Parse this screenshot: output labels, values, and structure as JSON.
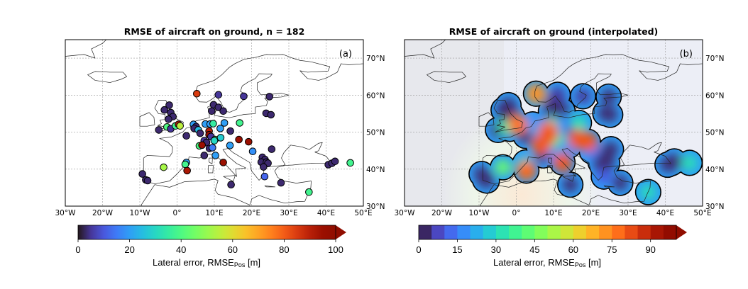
{
  "chart_data": [
    {
      "type": "scatter",
      "title": "RMSE of aircraft on ground, n = 182",
      "panel_label": "(a)",
      "x_ticks": [
        "30°W",
        "20°W",
        "10°W",
        "0°",
        "10°E",
        "20°E",
        "30°E",
        "40°E",
        "50°E"
      ],
      "y_ticks": [
        "30°N",
        "40°N",
        "50°N",
        "60°N",
        "70°N"
      ],
      "xlim": [
        -30,
        50
      ],
      "ylim": [
        30,
        75
      ],
      "grid": true,
      "colorbar": {
        "label": "Lateral error, RMSE",
        "label_sub": "Pos",
        "label_unit": " [m]",
        "ticks": [
          "0",
          "20",
          "40",
          "60",
          "80",
          "100"
        ],
        "range": [
          0,
          100
        ],
        "extend": "max",
        "colormap": "turbo"
      },
      "points": [
        [
          5.3,
          60.4,
          85
        ],
        [
          11.1,
          60.1,
          5
        ],
        [
          17.9,
          59.7,
          5
        ],
        [
          24.8,
          59.6,
          3
        ],
        [
          23.9,
          55.1,
          3
        ],
        [
          25.2,
          54.7,
          3
        ],
        [
          -2.1,
          57.3,
          3
        ],
        [
          -3.4,
          56.0,
          3
        ],
        [
          -1.7,
          55.3,
          3
        ],
        [
          -1.1,
          54.2,
          3
        ],
        [
          -2.3,
          53.5,
          3
        ],
        [
          9.8,
          57.4,
          3
        ],
        [
          9.3,
          55.7,
          3
        ],
        [
          11.1,
          56.7,
          3
        ],
        [
          12.4,
          55.7,
          3
        ],
        [
          -4.9,
          50.6,
          3
        ],
        [
          -2.7,
          51.4,
          40
        ],
        [
          -1.7,
          50.9,
          5
        ],
        [
          -0.4,
          51.7,
          38
        ],
        [
          0.4,
          52.1,
          90
        ],
        [
          0.8,
          51.7,
          55
        ],
        [
          2.5,
          49.0,
          3
        ],
        [
          4.4,
          52.1,
          20
        ],
        [
          5.1,
          51.5,
          3
        ],
        [
          4.6,
          51.0,
          3
        ],
        [
          5.7,
          50.6,
          25
        ],
        [
          6.2,
          49.7,
          3
        ],
        [
          7.6,
          52.2,
          20
        ],
        [
          8.9,
          52.2,
          20
        ],
        [
          9.7,
          52.3,
          35
        ],
        [
          8.6,
          50.3,
          90
        ],
        [
          8.6,
          49.3,
          95
        ],
        [
          9.1,
          48.8,
          5
        ],
        [
          10.2,
          48.0,
          45
        ],
        [
          10.0,
          47.7,
          30
        ],
        [
          11.7,
          48.5,
          28
        ],
        [
          11.6,
          51.0,
          20
        ],
        [
          12.7,
          52.5,
          20
        ],
        [
          14.3,
          50.3,
          3
        ],
        [
          16.8,
          52.5,
          38
        ],
        [
          7.3,
          47.7,
          5
        ],
        [
          7.9,
          47.2,
          3
        ],
        [
          6.0,
          46.3,
          40
        ],
        [
          6.7,
          46.5,
          95
        ],
        [
          8.7,
          45.6,
          3
        ],
        [
          9.5,
          45.8,
          15
        ],
        [
          7.3,
          43.7,
          3
        ],
        [
          10.3,
          43.7,
          20
        ],
        [
          14.2,
          46.4,
          20
        ],
        [
          16.6,
          48.0,
          95
        ],
        [
          19.2,
          47.4,
          95
        ],
        [
          20.3,
          44.8,
          18
        ],
        [
          25.4,
          45.4,
          3
        ],
        [
          12.4,
          41.8,
          95
        ],
        [
          2.5,
          41.8,
          20
        ],
        [
          2.2,
          41.3,
          38
        ],
        [
          2.7,
          39.6,
          92
        ],
        [
          -3.6,
          40.5,
          52
        ],
        [
          -9.3,
          38.7,
          3
        ],
        [
          -8.4,
          37.1,
          3
        ],
        [
          -7.9,
          36.9,
          3
        ],
        [
          22.9,
          43.2,
          3
        ],
        [
          23.6,
          42.6,
          3
        ],
        [
          22.6,
          41.9,
          3
        ],
        [
          24.0,
          41.9,
          3
        ],
        [
          24.4,
          41.6,
          3
        ],
        [
          23.2,
          40.6,
          3
        ],
        [
          23.5,
          38.0,
          12
        ],
        [
          27.9,
          36.3,
          3
        ],
        [
          14.5,
          35.8,
          3
        ],
        [
          35.4,
          33.8,
          38
        ],
        [
          40.6,
          41.2,
          3
        ],
        [
          41.6,
          41.6,
          3
        ],
        [
          42.4,
          42.1,
          3
        ],
        [
          46.5,
          41.7,
          38
        ]
      ]
    },
    {
      "type": "heatmap",
      "title": "RMSE of aircraft on ground (interpolated)",
      "panel_label": "(b)",
      "x_ticks": [
        "30°W",
        "20°W",
        "10°W",
        "0°",
        "10°E",
        "20°E",
        "30°E",
        "40°E",
        "50°E"
      ],
      "y_ticks": [
        "30°N",
        "40°N",
        "50°N",
        "60°N",
        "70°N"
      ],
      "xlim": [
        -30,
        50
      ],
      "ylim": [
        30,
        75
      ],
      "grid": true,
      "colorbar": {
        "label": "Lateral error, RMSE",
        "label_sub": "Pos",
        "label_unit": " [m]",
        "ticks": [
          "0",
          "15",
          "30",
          "45",
          "60",
          "75",
          "90"
        ],
        "range": [
          0,
          100
        ],
        "levels": 20,
        "extend": "max",
        "colormap": "turbo"
      }
    }
  ]
}
